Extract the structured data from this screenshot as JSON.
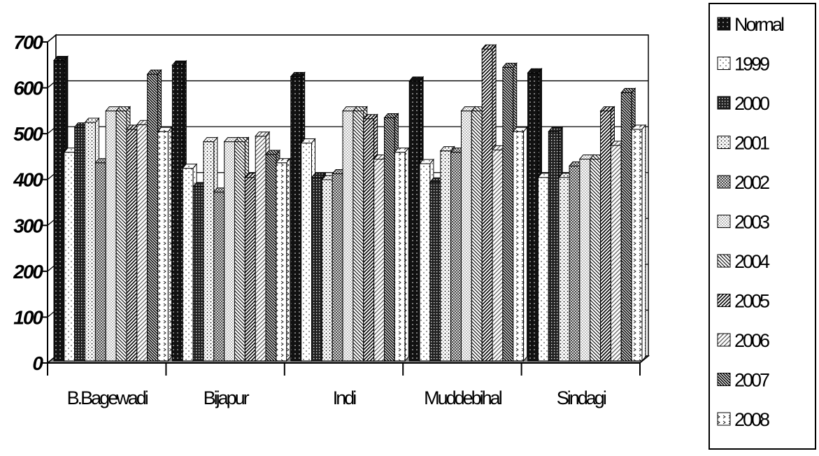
{
  "chart_data": {
    "type": "bar",
    "categories": [
      "B.Bagewadi",
      "Bijapur",
      "Indi",
      "Muddebihal",
      "Sindagi"
    ],
    "series": [
      {
        "name": "Normal",
        "values": [
          655,
          645,
          620,
          610,
          628
        ]
      },
      {
        "name": "1999",
        "values": [
          455,
          420,
          475,
          430,
          400
        ]
      },
      {
        "name": "2000",
        "values": [
          510,
          380,
          400,
          390,
          500
        ]
      },
      {
        "name": "2001",
        "values": [
          520,
          478,
          395,
          458,
          400
        ]
      },
      {
        "name": "2002",
        "values": [
          432,
          368,
          408,
          455,
          425
        ]
      },
      {
        "name": "2003",
        "values": [
          545,
          478,
          545,
          545,
          440
        ]
      },
      {
        "name": "2004",
        "values": [
          545,
          478,
          545,
          545,
          440
        ]
      },
      {
        "name": "2005",
        "values": [
          505,
          400,
          528,
          680,
          545
        ]
      },
      {
        "name": "2006",
        "values": [
          515,
          490,
          440,
          460,
          470
        ]
      },
      {
        "name": "2007",
        "values": [
          625,
          450,
          530,
          640,
          585
        ]
      },
      {
        "name": "2008",
        "values": [
          500,
          432,
          455,
          500,
          505
        ]
      }
    ],
    "y_ticks": [
      "0",
      "100",
      "200",
      "300",
      "400",
      "500",
      "600",
      "700"
    ],
    "ylim": [
      0,
      700
    ],
    "grid": true,
    "legend": "right",
    "title": "",
    "xlabel": "",
    "ylabel": ""
  }
}
